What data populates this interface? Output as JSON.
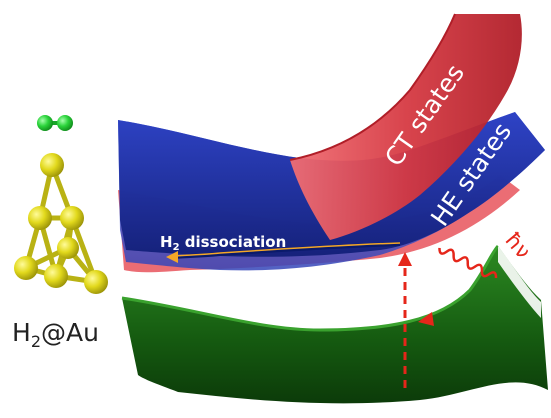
{
  "molecule": {
    "label_main": "H",
    "label_sub": "2",
    "label_rest": "@Au"
  },
  "states": {
    "ct": "CT states",
    "he": "HE states"
  },
  "reaction": {
    "label_main": "H",
    "label_sub": "2",
    "label_rest": " dissociation"
  },
  "photon": {
    "label": "ħν"
  },
  "colors": {
    "ct_surface": "#c42a35",
    "he_surface": "#1b2f9e",
    "ground_surface": "#1f6d17",
    "hydrogen": "#29d13a",
    "gold": "#d8d018",
    "arrow": "#e5261a"
  },
  "icons": {
    "photon": "wavy-arrow-icon",
    "excitation": "dashed-arrow-icon"
  }
}
